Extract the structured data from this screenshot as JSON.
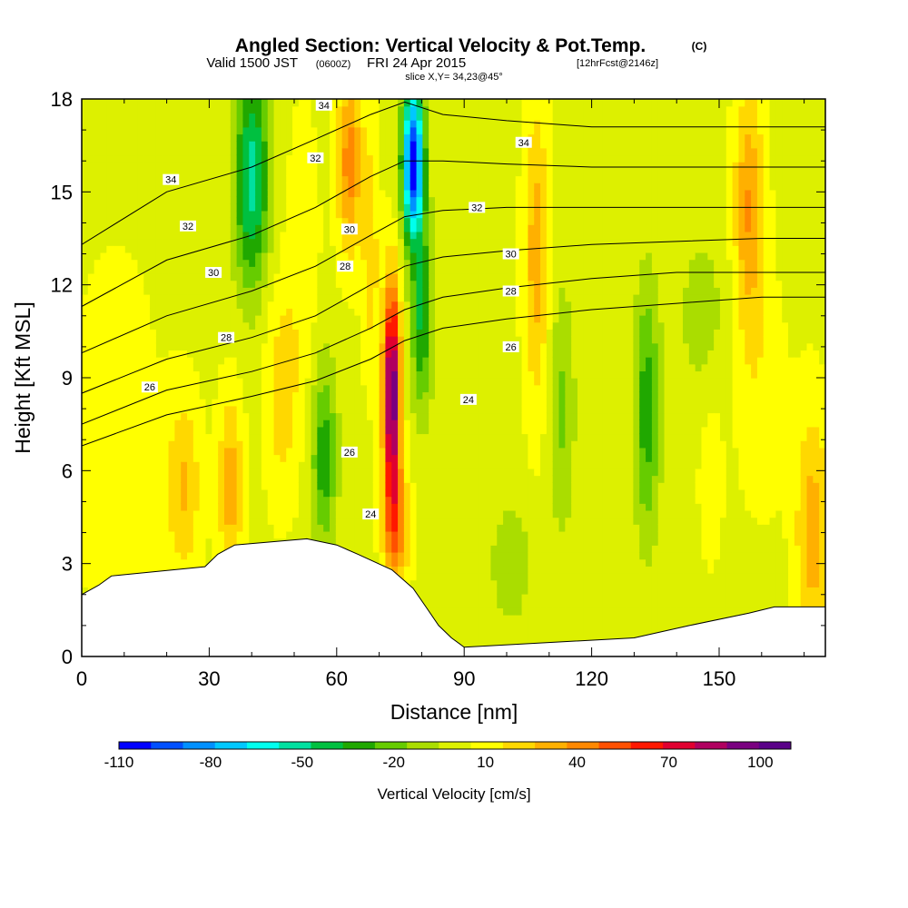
{
  "title": {
    "main": "Angled Section: Vertical Velocity & Pot.Temp.",
    "main_unit": "(C)",
    "line2_a": "Valid 1500 JST",
    "line2_b": "(0600Z)",
    "line2_c": "FRI 24 Apr 2015",
    "line2_d": "[12hrFcst@2146z]",
    "line3": "slice X,Y= 34,23@45°"
  },
  "chart_data": {
    "type": "heatmap",
    "xlabel": "Distance [nm]",
    "ylabel": "Height [Kft MSL]",
    "xlim": [
      0,
      175
    ],
    "ylim": [
      0,
      18
    ],
    "x_ticks": [
      0,
      30,
      60,
      90,
      120,
      150
    ],
    "y_ticks": [
      0,
      3,
      6,
      9,
      12,
      15,
      18
    ],
    "colorbar": {
      "label": "Vertical Velocity [cm/s]",
      "range": [
        -110,
        110
      ],
      "tick_values": [
        -110,
        -80,
        -50,
        -20,
        10,
        40,
        70,
        100
      ],
      "colors": [
        "#0000ff",
        "#0050ff",
        "#0090ff",
        "#00c8ff",
        "#00ffee",
        "#00e0a0",
        "#00c040",
        "#20a800",
        "#66cc00",
        "#aadd00",
        "#ddf000",
        "#ffff00",
        "#ffd800",
        "#ffb000",
        "#ff8800",
        "#ff5000",
        "#ff1800",
        "#e00030",
        "#b00060",
        "#7a0080",
        "#5a0088"
      ]
    },
    "terrain": [
      {
        "x": 0,
        "h": 2.0
      },
      {
        "x": 4,
        "h": 2.3
      },
      {
        "x": 7,
        "h": 2.6
      },
      {
        "x": 29,
        "h": 2.9
      },
      {
        "x": 32,
        "h": 3.3
      },
      {
        "x": 36,
        "h": 3.6
      },
      {
        "x": 53,
        "h": 3.8
      },
      {
        "x": 60,
        "h": 3.6
      },
      {
        "x": 65,
        "h": 3.3
      },
      {
        "x": 73,
        "h": 2.8
      },
      {
        "x": 78,
        "h": 2.2
      },
      {
        "x": 81,
        "h": 1.6
      },
      {
        "x": 84,
        "h": 1.0
      },
      {
        "x": 87,
        "h": 0.6
      },
      {
        "x": 90,
        "h": 0.3
      },
      {
        "x": 130,
        "h": 0.6
      },
      {
        "x": 143,
        "h": 1.0
      },
      {
        "x": 157,
        "h": 1.4
      },
      {
        "x": 163,
        "h": 1.6
      },
      {
        "x": 175,
        "h": 1.6
      }
    ],
    "features": [
      {
        "x": 8,
        "z": 7.0,
        "value": 10,
        "sx": 10,
        "sz": 6
      },
      {
        "x": 24,
        "z": 5.5,
        "value": 25,
        "sx": 4,
        "sz": 3
      },
      {
        "x": 35,
        "z": 5.5,
        "value": 30,
        "sx": 3,
        "sz": 3
      },
      {
        "x": 40,
        "z": 15.5,
        "value": -55,
        "sx": 4,
        "sz": 3.5
      },
      {
        "x": 47,
        "z": 8.5,
        "value": 20,
        "sx": 4,
        "sz": 3.5
      },
      {
        "x": 52,
        "z": 13.0,
        "value": 10,
        "sx": 4,
        "sz": 5
      },
      {
        "x": 57,
        "z": 6.5,
        "value": -35,
        "sx": 3,
        "sz": 3
      },
      {
        "x": 63,
        "z": 16.0,
        "value": 40,
        "sx": 3,
        "sz": 3
      },
      {
        "x": 68,
        "z": 13.0,
        "value": 20,
        "sx": 2,
        "sz": 4
      },
      {
        "x": 73,
        "z": 8.5,
        "value": 100,
        "sx": 2,
        "sz": 3.5
      },
      {
        "x": 74,
        "z": 4.2,
        "value": 40,
        "sx": 3,
        "sz": 2
      },
      {
        "x": 78,
        "z": 16.0,
        "value": -110,
        "sx": 2.5,
        "sz": 2.5
      },
      {
        "x": 80,
        "z": 11.0,
        "value": -40,
        "sx": 2.5,
        "sz": 3
      },
      {
        "x": 101,
        "z": 3.0,
        "value": -15,
        "sx": 5,
        "sz": 2
      },
      {
        "x": 107,
        "z": 13.0,
        "value": 30,
        "sx": 3,
        "sz": 5
      },
      {
        "x": 113,
        "z": 8.0,
        "value": -20,
        "sx": 3,
        "sz": 4
      },
      {
        "x": 133,
        "z": 8.0,
        "value": -35,
        "sx": 3,
        "sz": 4
      },
      {
        "x": 146,
        "z": 11.0,
        "value": -12,
        "sx": 6,
        "sz": 3
      },
      {
        "x": 148,
        "z": 6.0,
        "value": 10,
        "sx": 3,
        "sz": 3
      },
      {
        "x": 157,
        "z": 14.5,
        "value": 35,
        "sx": 3.5,
        "sz": 4
      },
      {
        "x": 160,
        "z": 8.5,
        "value": 10,
        "sx": 6,
        "sz": 4
      },
      {
        "x": 172,
        "z": 4.0,
        "value": 30,
        "sx": 4,
        "sz": 4
      }
    ],
    "contour_series": [
      {
        "label": "24",
        "points": [
          [
            0,
            6.8
          ],
          [
            20,
            7.8
          ],
          [
            40,
            8.4
          ],
          [
            55,
            8.9
          ],
          [
            68,
            9.6
          ],
          [
            76,
            10.2
          ],
          [
            85,
            10.6
          ],
          [
            100,
            10.9
          ],
          [
            120,
            11.2
          ],
          [
            140,
            11.4
          ],
          [
            160,
            11.6
          ],
          [
            175,
            11.6
          ]
        ]
      },
      {
        "label": "26",
        "points": [
          [
            0,
            7.5
          ],
          [
            20,
            8.6
          ],
          [
            40,
            9.2
          ],
          [
            55,
            9.8
          ],
          [
            68,
            10.6
          ],
          [
            76,
            11.2
          ],
          [
            85,
            11.6
          ],
          [
            100,
            11.9
          ],
          [
            120,
            12.2
          ],
          [
            140,
            12.4
          ],
          [
            160,
            12.4
          ],
          [
            175,
            12.4
          ]
        ]
      },
      {
        "label": "28",
        "points": [
          [
            0,
            8.5
          ],
          [
            20,
            9.6
          ],
          [
            40,
            10.3
          ],
          [
            55,
            11.0
          ],
          [
            68,
            12.0
          ],
          [
            76,
            12.6
          ],
          [
            85,
            12.9
          ],
          [
            100,
            13.1
          ],
          [
            120,
            13.3
          ],
          [
            140,
            13.4
          ],
          [
            160,
            13.5
          ],
          [
            175,
            13.5
          ]
        ]
      },
      {
        "label": "30",
        "points": [
          [
            0,
            9.8
          ],
          [
            20,
            11.0
          ],
          [
            40,
            11.8
          ],
          [
            55,
            12.6
          ],
          [
            68,
            13.6
          ],
          [
            76,
            14.2
          ],
          [
            85,
            14.4
          ],
          [
            100,
            14.5
          ],
          [
            120,
            14.5
          ],
          [
            140,
            14.5
          ],
          [
            160,
            14.5
          ],
          [
            175,
            14.5
          ]
        ]
      },
      {
        "label": "32",
        "points": [
          [
            0,
            11.3
          ],
          [
            20,
            12.8
          ],
          [
            40,
            13.6
          ],
          [
            55,
            14.5
          ],
          [
            68,
            15.5
          ],
          [
            76,
            16.0
          ],
          [
            85,
            16.0
          ],
          [
            100,
            15.9
          ],
          [
            120,
            15.8
          ],
          [
            140,
            15.8
          ],
          [
            160,
            15.8
          ],
          [
            175,
            15.8
          ]
        ]
      },
      {
        "label": "34",
        "points": [
          [
            0,
            13.3
          ],
          [
            20,
            15.0
          ],
          [
            40,
            15.8
          ],
          [
            55,
            16.7
          ],
          [
            68,
            17.5
          ],
          [
            76,
            17.9
          ],
          [
            85,
            17.5
          ],
          [
            100,
            17.3
          ],
          [
            120,
            17.1
          ],
          [
            140,
            17.1
          ],
          [
            160,
            17.1
          ],
          [
            175,
            17.1
          ]
        ]
      }
    ],
    "contour_labels": [
      {
        "text": "34",
        "x": 21,
        "y": 15.4
      },
      {
        "text": "32",
        "x": 25,
        "y": 13.9
      },
      {
        "text": "30",
        "x": 31,
        "y": 12.4
      },
      {
        "text": "28",
        "x": 34,
        "y": 10.3
      },
      {
        "text": "26",
        "x": 16,
        "y": 8.7
      },
      {
        "text": "34",
        "x": 57,
        "y": 17.8
      },
      {
        "text": "32",
        "x": 55,
        "y": 16.1
      },
      {
        "text": "30",
        "x": 63,
        "y": 13.8
      },
      {
        "text": "28",
        "x": 62,
        "y": 12.6
      },
      {
        "text": "26",
        "x": 63,
        "y": 6.6
      },
      {
        "text": "24",
        "x": 68,
        "y": 4.6
      },
      {
        "text": "34",
        "x": 104,
        "y": 16.6
      },
      {
        "text": "32",
        "x": 93,
        "y": 14.5
      },
      {
        "text": "30",
        "x": 101,
        "y": 13.0
      },
      {
        "text": "28",
        "x": 101,
        "y": 11.8
      },
      {
        "text": "26",
        "x": 101,
        "y": 10.0
      },
      {
        "text": "24",
        "x": 91,
        "y": 8.3
      }
    ]
  }
}
